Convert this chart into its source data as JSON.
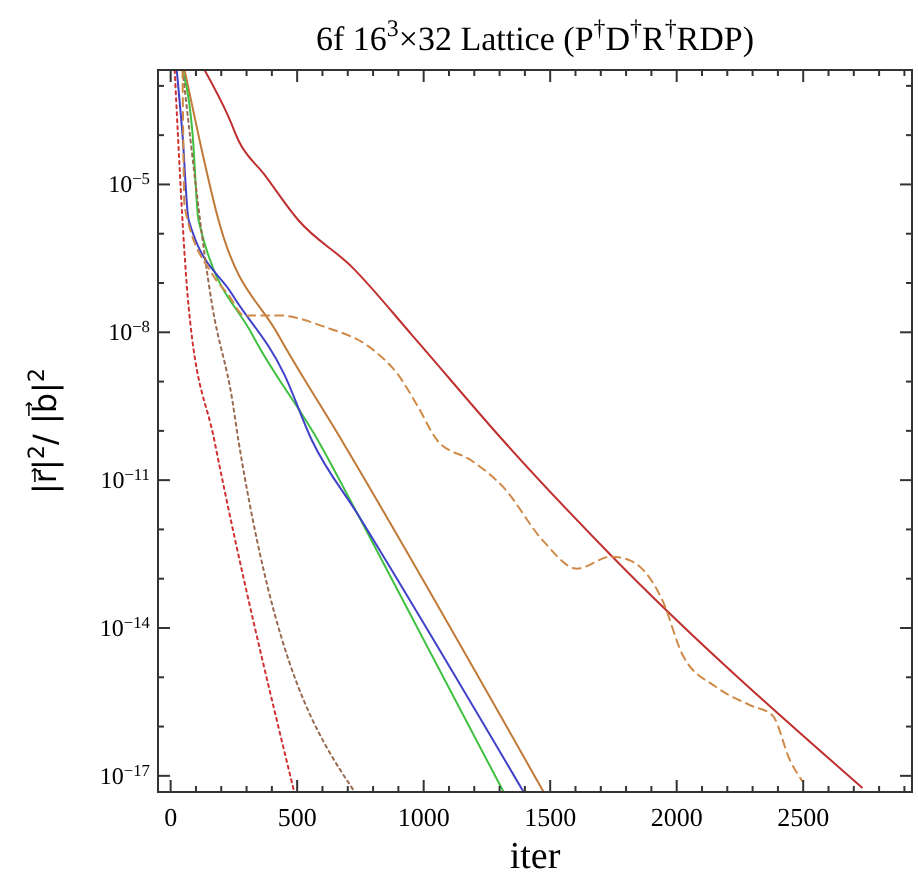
{
  "chart_data": {
    "type": "line",
    "title": "6f 16$^{3}$×32 Lattice (P$^{†}$D$^{†}$R$^{†}$RDP)",
    "xlabel": "iter",
    "ylabel": "|r⃗|$^{2}$/ |b⃗|$^{2}$",
    "log": "y",
    "xlim": [
      -50,
      2930
    ],
    "ylim": [
      4.7e-18,
      0.0021
    ],
    "xticks": [
      0,
      {
        "value": 100,
        "label": null
      },
      {
        "value": 200,
        "label": null
      },
      {
        "value": 300,
        "label": null
      },
      {
        "value": 400,
        "label": null
      },
      500,
      {
        "value": 600,
        "label": null
      },
      {
        "value": 700,
        "label": null
      },
      {
        "value": 800,
        "label": null
      },
      {
        "value": 900,
        "label": null
      },
      1000,
      {
        "value": 1100,
        "label": null
      },
      {
        "value": 1200,
        "label": null
      },
      {
        "value": 1300,
        "label": null
      },
      {
        "value": 1400,
        "label": null
      },
      1500,
      {
        "value": 1600,
        "label": null
      },
      {
        "value": 1700,
        "label": null
      },
      {
        "value": 1800,
        "label": null
      },
      {
        "value": 1900,
        "label": null
      },
      2000,
      {
        "value": 2100,
        "label": null
      },
      {
        "value": 2200,
        "label": null
      },
      {
        "value": 2300,
        "label": null
      },
      {
        "value": 2400,
        "label": null
      },
      2500,
      {
        "value": 2600,
        "label": null
      },
      {
        "value": 2700,
        "label": null
      },
      {
        "value": 2800,
        "label": null
      },
      {
        "value": 2900,
        "label": null
      }
    ],
    "yticks": [
      {
        "value": 1e-17,
        "label": "10$^{−17}$"
      },
      {
        "value": 1e-16,
        "label": null
      },
      {
        "value": 1e-15,
        "label": null
      },
      {
        "value": 1e-14,
        "label": "10$^{−14}$"
      },
      {
        "value": 1e-13,
        "label": null
      },
      {
        "value": 1e-12,
        "label": null
      },
      {
        "value": 1e-11,
        "label": "10$^{−11}$"
      },
      {
        "value": 1e-10,
        "label": null
      },
      {
        "value": 1e-09,
        "label": null
      },
      {
        "value": 1e-08,
        "label": "10$^{−8}$"
      },
      {
        "value": 1e-07,
        "label": null
      },
      {
        "value": 1e-06,
        "label": null
      },
      {
        "value": 1e-05,
        "label": "10$^{−5}$"
      },
      {
        "value": 0.0001,
        "label": null
      },
      {
        "value": 0.001,
        "label": null
      }
    ],
    "series": [
      {
        "color": "#c03030",
        "line_style": "solid",
        "x": [
          134,
          228,
          268,
          370,
          504,
          717,
          953,
          1315,
          1740,
          2732
        ],
        "values": [
          0.0021,
          0.00024,
          7.8e-05,
          1.6e-05,
          1.9e-06,
          2.1e-07,
          8.9e-09,
          6.3e-11,
          3e-13,
          5.8e-18
        ]
      },
      {
        "color": "#c07a38",
        "line_style": "solid",
        "x": [
          55,
          110,
          189,
          425,
          677,
          1473
        ],
        "values": [
          0.0021,
          0.0001,
          1.9e-06,
          8.9e-09,
          6.3e-11,
          4.8e-18
        ]
      },
      {
        "color": "#40c040",
        "line_style": "solid",
        "x": [
          47,
          87,
          110,
          323,
          583,
          740,
          1315
        ],
        "values": [
          0.0021,
          0.0001,
          1.9e-06,
          8.9e-09,
          6.3e-11,
          2e-12,
          4.8e-18
        ]
      },
      {
        "color": "#4040c8",
        "line_style": "solid",
        "x": [
          24,
          47,
          71,
          244,
          449,
          559,
          740,
          1394
        ],
        "values": [
          0.0021,
          0.0001,
          1.9e-06,
          5.8e-08,
          1.4e-09,
          6.3e-11,
          2e-12,
          4.8e-18
        ]
      },
      {
        "color": "#d03030",
        "line_style": "dotted",
        "x": [
          16,
          71,
          173,
          488
        ],
        "values": [
          0.0021,
          3.3e-08,
          6.3e-11,
          4.8e-18
        ]
      },
      {
        "color": "#9a6a50",
        "line_style": "dotted",
        "x": [
          47,
          165,
          244,
          268,
          726
        ],
        "values": [
          0.0021,
          3.3e-08,
          4.1e-10,
          6.3e-11,
          4.8e-18
        ]
      },
      {
        "color": "#d08a48",
        "line_style": "dashed",
        "x": [
          47,
          55,
          165,
          228,
          291,
          425,
          606,
          803,
          898,
          976,
          1055,
          1189,
          1315,
          1473,
          1606,
          1740,
          1819,
          1945,
          2024,
          2157,
          2291,
          2378,
          2449,
          2496
        ],
        "values": [
          0.0021,
          3.5e-06,
          1.5e-07,
          5.8e-08,
          2.2e-08,
          2.2e-08,
          1.3e-08,
          4.3e-09,
          1.4e-09,
          3.2e-10,
          6.3e-11,
          2.5e-11,
          7.2e-12,
          5.8e-13,
          1.6e-13,
          2.8e-13,
          2.3e-13,
          3.5e-14,
          2.8e-15,
          6.3e-16,
          2.7e-16,
          1.7e-16,
          2e-17,
          7.9e-18
        ]
      }
    ]
  }
}
